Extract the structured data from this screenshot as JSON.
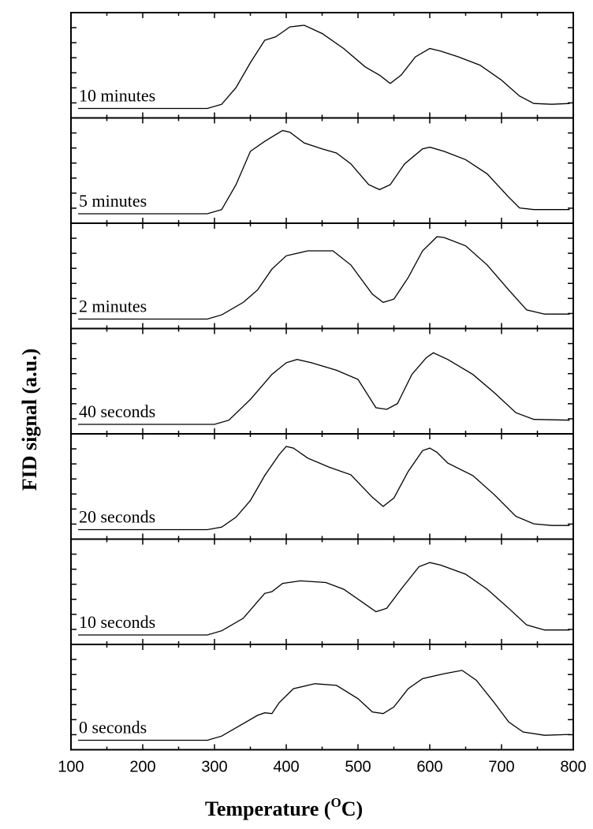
{
  "chart_data": {
    "type": "line",
    "xlabel": "Temperature (",
    "xlabel_sup": "O",
    "xlabel_end": "C)",
    "ylabel": "FID signal (a.u.)",
    "xlim": [
      100,
      800
    ],
    "x_ticks": [
      100,
      200,
      300,
      400,
      500,
      600,
      700,
      800
    ],
    "x_tick_labels": [
      "100",
      "200",
      "300",
      "400",
      "500",
      "600",
      "700",
      "800"
    ],
    "y_scale": "arbitrary units, stacked panels",
    "panels": [
      {
        "name": "10 minutes",
        "points": [
          [
            110,
            0
          ],
          [
            290,
            0
          ],
          [
            310,
            0.05
          ],
          [
            330,
            0.25
          ],
          [
            350,
            0.55
          ],
          [
            370,
            0.82
          ],
          [
            385,
            0.86
          ],
          [
            392,
            0.9
          ],
          [
            405,
            0.98
          ],
          [
            425,
            1.0
          ],
          [
            450,
            0.9
          ],
          [
            480,
            0.72
          ],
          [
            510,
            0.5
          ],
          [
            530,
            0.4
          ],
          [
            545,
            0.3
          ],
          [
            560,
            0.4
          ],
          [
            580,
            0.62
          ],
          [
            600,
            0.72
          ],
          [
            615,
            0.69
          ],
          [
            640,
            0.62
          ],
          [
            670,
            0.52
          ],
          [
            700,
            0.34
          ],
          [
            725,
            0.15
          ],
          [
            745,
            0.06
          ],
          [
            770,
            0.05
          ],
          [
            795,
            0.06
          ]
        ]
      },
      {
        "name": "5 minutes",
        "points": [
          [
            110,
            0
          ],
          [
            290,
            0
          ],
          [
            310,
            0.05
          ],
          [
            330,
            0.35
          ],
          [
            350,
            0.75
          ],
          [
            370,
            0.87
          ],
          [
            385,
            0.95
          ],
          [
            395,
            1.0
          ],
          [
            405,
            0.98
          ],
          [
            425,
            0.85
          ],
          [
            450,
            0.78
          ],
          [
            470,
            0.73
          ],
          [
            490,
            0.6
          ],
          [
            515,
            0.35
          ],
          [
            530,
            0.29
          ],
          [
            545,
            0.35
          ],
          [
            565,
            0.6
          ],
          [
            590,
            0.78
          ],
          [
            600,
            0.8
          ],
          [
            620,
            0.75
          ],
          [
            650,
            0.65
          ],
          [
            680,
            0.48
          ],
          [
            710,
            0.2
          ],
          [
            725,
            0.07
          ],
          [
            745,
            0.05
          ],
          [
            770,
            0.05
          ],
          [
            795,
            0.05
          ]
        ]
      },
      {
        "name": "2 minutes",
        "points": [
          [
            110,
            0
          ],
          [
            290,
            0
          ],
          [
            310,
            0.05
          ],
          [
            340,
            0.2
          ],
          [
            360,
            0.35
          ],
          [
            380,
            0.6
          ],
          [
            400,
            0.76
          ],
          [
            430,
            0.82
          ],
          [
            465,
            0.82
          ],
          [
            490,
            0.65
          ],
          [
            520,
            0.3
          ],
          [
            535,
            0.2
          ],
          [
            550,
            0.24
          ],
          [
            570,
            0.5
          ],
          [
            590,
            0.82
          ],
          [
            610,
            0.99
          ],
          [
            620,
            0.98
          ],
          [
            650,
            0.88
          ],
          [
            680,
            0.65
          ],
          [
            710,
            0.35
          ],
          [
            735,
            0.11
          ],
          [
            760,
            0.06
          ],
          [
            795,
            0.06
          ]
        ]
      },
      {
        "name": "40 seconds",
        "points": [
          [
            110,
            0
          ],
          [
            300,
            0
          ],
          [
            320,
            0.05
          ],
          [
            350,
            0.3
          ],
          [
            380,
            0.6
          ],
          [
            400,
            0.74
          ],
          [
            415,
            0.78
          ],
          [
            435,
            0.74
          ],
          [
            470,
            0.65
          ],
          [
            500,
            0.54
          ],
          [
            525,
            0.2
          ],
          [
            540,
            0.18
          ],
          [
            555,
            0.25
          ],
          [
            575,
            0.6
          ],
          [
            595,
            0.8
          ],
          [
            605,
            0.86
          ],
          [
            625,
            0.78
          ],
          [
            660,
            0.6
          ],
          [
            690,
            0.38
          ],
          [
            720,
            0.14
          ],
          [
            745,
            0.06
          ],
          [
            795,
            0.05
          ]
        ]
      },
      {
        "name": "20 seconds",
        "points": [
          [
            110,
            0
          ],
          [
            290,
            0
          ],
          [
            310,
            0.03
          ],
          [
            330,
            0.15
          ],
          [
            350,
            0.35
          ],
          [
            370,
            0.65
          ],
          [
            390,
            0.9
          ],
          [
            400,
            1.0
          ],
          [
            410,
            0.98
          ],
          [
            430,
            0.86
          ],
          [
            460,
            0.75
          ],
          [
            490,
            0.66
          ],
          [
            520,
            0.39
          ],
          [
            535,
            0.28
          ],
          [
            550,
            0.38
          ],
          [
            570,
            0.7
          ],
          [
            590,
            0.95
          ],
          [
            600,
            0.98
          ],
          [
            610,
            0.93
          ],
          [
            625,
            0.8
          ],
          [
            660,
            0.65
          ],
          [
            690,
            0.42
          ],
          [
            720,
            0.16
          ],
          [
            745,
            0.07
          ],
          [
            770,
            0.05
          ],
          [
            795,
            0.05
          ]
        ]
      },
      {
        "name": "10 seconds",
        "points": [
          [
            110,
            0
          ],
          [
            290,
            0
          ],
          [
            310,
            0.05
          ],
          [
            340,
            0.2
          ],
          [
            360,
            0.4
          ],
          [
            370,
            0.5
          ],
          [
            380,
            0.52
          ],
          [
            395,
            0.62
          ],
          [
            420,
            0.65
          ],
          [
            455,
            0.63
          ],
          [
            480,
            0.55
          ],
          [
            505,
            0.4
          ],
          [
            525,
            0.28
          ],
          [
            540,
            0.32
          ],
          [
            560,
            0.55
          ],
          [
            585,
            0.82
          ],
          [
            600,
            0.87
          ],
          [
            615,
            0.84
          ],
          [
            650,
            0.73
          ],
          [
            680,
            0.55
          ],
          [
            710,
            0.32
          ],
          [
            735,
            0.12
          ],
          [
            760,
            0.06
          ],
          [
            795,
            0.06
          ]
        ]
      },
      {
        "name": "0 seconds",
        "points": [
          [
            110,
            0
          ],
          [
            290,
            0
          ],
          [
            310,
            0.05
          ],
          [
            340,
            0.2
          ],
          [
            360,
            0.3
          ],
          [
            370,
            0.33
          ],
          [
            380,
            0.32
          ],
          [
            390,
            0.45
          ],
          [
            410,
            0.62
          ],
          [
            440,
            0.68
          ],
          [
            470,
            0.66
          ],
          [
            500,
            0.5
          ],
          [
            520,
            0.34
          ],
          [
            535,
            0.32
          ],
          [
            550,
            0.4
          ],
          [
            570,
            0.62
          ],
          [
            590,
            0.74
          ],
          [
            620,
            0.8
          ],
          [
            645,
            0.84
          ],
          [
            665,
            0.72
          ],
          [
            690,
            0.45
          ],
          [
            710,
            0.22
          ],
          [
            730,
            0.1
          ],
          [
            760,
            0.06
          ],
          [
            795,
            0.07
          ]
        ]
      }
    ]
  }
}
